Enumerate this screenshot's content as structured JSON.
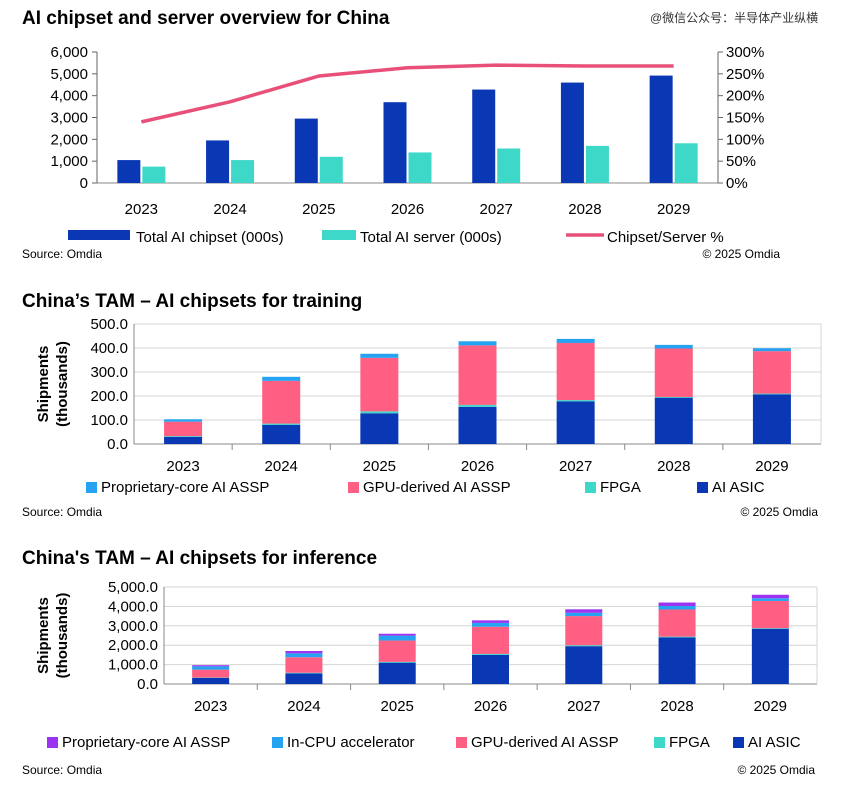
{
  "watermark": "@微信公众号：半导体产业纵横",
  "chart_data": [
    {
      "type": "bar",
      "title": "AI chipset and server overview for China",
      "categories": [
        "2023",
        "2024",
        "2025",
        "2026",
        "2027",
        "2028",
        "2029"
      ],
      "series": [
        {
          "name": "Total AI chipset (000s)",
          "color": "#0a37b4",
          "values": [
            1050,
            1950,
            2950,
            3700,
            4280,
            4600,
            4920
          ]
        },
        {
          "name": "Total AI server (000s)",
          "color": "#3dd8c8",
          "values": [
            750,
            1050,
            1200,
            1400,
            1580,
            1700,
            1820
          ]
        },
        {
          "name": "Chipset/Server %",
          "type": "line",
          "axis": "right",
          "color": "#e8507a",
          "values": [
            140,
            186,
            245,
            264,
            270,
            268,
            268
          ]
        }
      ],
      "y_ticks": [
        "0",
        "1,000",
        "2,000",
        "3,000",
        "4,000",
        "5,000",
        "6,000"
      ],
      "y2_ticks": [
        "0%",
        "50%",
        "100%",
        "150%",
        "200%",
        "250%",
        "300%"
      ],
      "ylim": [
        0,
        6000
      ],
      "y2lim": [
        0,
        300
      ],
      "legend": "bottom",
      "source": "Source: Omdia",
      "copyright": "© 2025 Omdia"
    },
    {
      "type": "bar",
      "stacked": true,
      "title": "China’s TAM – AI chipsets for training",
      "ylabel": "Shipments (thousands)",
      "ylabel_lines": [
        "Shipments",
        "(thousands)"
      ],
      "categories": [
        "2023",
        "2024",
        "2025",
        "2026",
        "2027",
        "2028",
        "2029"
      ],
      "series": [
        {
          "name": "AI ASIC",
          "color": "#0a37b4",
          "values": [
            30,
            80,
            128,
            155,
            178,
            193,
            207
          ]
        },
        {
          "name": "FPGA",
          "color": "#3dd8c8",
          "values": [
            3,
            5,
            8,
            8,
            5,
            3,
            3
          ]
        },
        {
          "name": "GPU-derived AI ASSP",
          "color": "#fe5f83",
          "values": [
            60,
            178,
            223,
            248,
            238,
            202,
            177
          ]
        },
        {
          "name": "Proprietary-core AI ASSP",
          "color": "#26a3f0",
          "values": [
            10,
            17,
            17,
            17,
            17,
            15,
            12
          ]
        }
      ],
      "legend_order": [
        "Proprietary-core AI ASSP",
        "GPU-derived AI ASSP",
        "FPGA",
        "AI ASIC"
      ],
      "y_ticks": [
        "0.0",
        "100.0",
        "200.0",
        "300.0",
        "400.0",
        "500.0"
      ],
      "ylim": [
        0,
        500
      ],
      "legend": "bottom",
      "source": "Source: Omdia",
      "copyright": "© 2025 Omdia"
    },
    {
      "type": "bar",
      "stacked": true,
      "title": "China's TAM – AI  chipsets for inference",
      "ylabel": "Shipments (thousands)",
      "ylabel_lines": [
        "Shipments",
        "(thousands)"
      ],
      "categories": [
        "2023",
        "2024",
        "2025",
        "2026",
        "2027",
        "2028",
        "2029"
      ],
      "series": [
        {
          "name": "AI ASIC",
          "color": "#0a37b4",
          "values": [
            310,
            550,
            1100,
            1500,
            1950,
            2400,
            2850
          ]
        },
        {
          "name": "FPGA",
          "color": "#3dd8c8",
          "values": [
            20,
            30,
            40,
            50,
            50,
            40,
            30
          ]
        },
        {
          "name": "GPU-derived AI ASSP",
          "color": "#fe5f83",
          "values": [
            410,
            800,
            1100,
            1400,
            1500,
            1400,
            1400
          ]
        },
        {
          "name": "In-CPU accelerator",
          "color": "#26a3f0",
          "values": [
            170,
            200,
            250,
            200,
            170,
            180,
            140
          ]
        },
        {
          "name": "Proprietary-core AI ASSP",
          "color": "#9b33f0",
          "values": [
            60,
            120,
            100,
            130,
            180,
            180,
            180
          ]
        }
      ],
      "legend_order": [
        "Proprietary-core AI ASSP",
        "In-CPU accelerator",
        "GPU-derived AI ASSP",
        "FPGA",
        "AI ASIC"
      ],
      "y_ticks": [
        "0.0",
        "1,000.0",
        "2,000.0",
        "3,000.0",
        "4,000.0",
        "5,000.0"
      ],
      "ylim": [
        0,
        5000
      ],
      "legend": "bottom",
      "source": "Source: Omdia",
      "copyright": "© 2025 Omdia"
    }
  ]
}
